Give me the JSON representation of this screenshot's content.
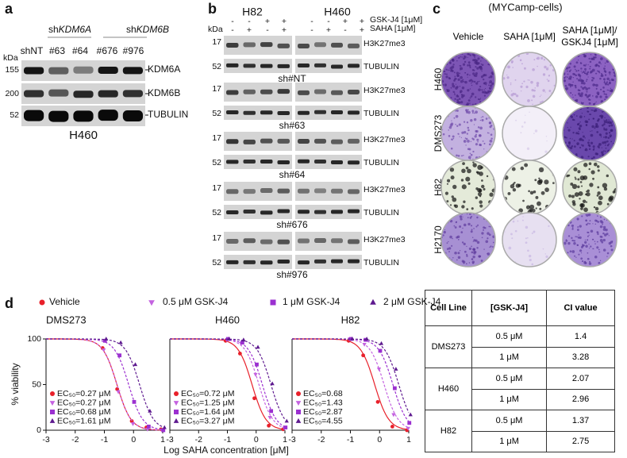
{
  "panel_a": {
    "label": "a",
    "groups": [
      {
        "prefix": "sh",
        "gene": "KDM6A"
      },
      {
        "prefix": "sh",
        "gene": "KDM6B"
      }
    ],
    "lanes": [
      "shNT",
      "#63",
      "#64",
      "#676",
      "#976"
    ],
    "kda": "kDa",
    "markers": [
      "155",
      "200",
      "52"
    ],
    "bands": [
      "KDM6A",
      "KDM6B",
      "TUBULIN"
    ],
    "cell_line": "H460"
  },
  "panel_b": {
    "label": "b",
    "cell_lines": [
      "H82",
      "H460"
    ],
    "treatments": [
      {
        "name": "GSK-J4 [1μM]",
        "signs": [
          "-",
          "-",
          "+",
          "+"
        ]
      },
      {
        "name": "SAHA [1μM]",
        "signs": [
          "-",
          "+",
          "-",
          "+"
        ]
      }
    ],
    "kda": "kDa",
    "blots": [
      {
        "name": "sh#NT",
        "markers": [
          "17",
          "52"
        ],
        "bands": [
          "H3K27me3",
          "TUBULIN"
        ]
      },
      {
        "name": "sh#63",
        "markers": [
          "17",
          "52"
        ],
        "bands": [
          "H3K27me3",
          "TUBULIN"
        ]
      },
      {
        "name": "sh#64",
        "markers": [
          "17",
          "52"
        ],
        "bands": [
          "H3K27me3",
          "TUBULIN"
        ]
      },
      {
        "name": "sh#676",
        "markers": [
          "17",
          "52"
        ],
        "bands": [
          "H3K27me3",
          "TUBULIN"
        ]
      },
      {
        "name": "sh#976",
        "markers": [
          "17",
          "52"
        ],
        "bands": [
          "H3K27me3",
          "TUBULIN"
        ]
      }
    ]
  },
  "panel_c": {
    "label": "c",
    "title": "(MYCamp-cells)",
    "columns": [
      "Vehicle",
      "SAHA [1μM]",
      "SAHA [1μM]/ GSKJ4 [1μM]"
    ],
    "rows": [
      "H460",
      "DMS273",
      "H82",
      "H2170"
    ]
  },
  "panel_d": {
    "label": "d",
    "y_label": "% viability",
    "x_label": "Log SAHA concentration [μM]"
  },
  "chart_data": [
    {
      "type": "line",
      "title": "DMS273",
      "x": [
        -1,
        -0.5,
        0,
        0.5,
        1
      ],
      "xlim": [
        -3,
        1
      ],
      "xticks": [
        -3,
        -2,
        -1,
        0,
        1
      ],
      "ylim": [
        0,
        100
      ],
      "yticks": [
        0,
        50,
        100
      ],
      "series": [
        {
          "name": "Vehicle",
          "color": "#e8202a",
          "marker": "circle",
          "values": [
            90,
            45,
            10,
            3,
            1
          ],
          "ec50": {
            "value": 0.27,
            "label": "EC₅₀=0.27 μM"
          }
        },
        {
          "name": "0.5 μM GSK-J4",
          "color": "#c462e0",
          "marker": "triangle-down",
          "values": [
            88,
            42,
            7,
            1,
            0
          ],
          "ec50": {
            "value": 0.27,
            "label": "EC₅₀=0.27 μM"
          }
        },
        {
          "name": "1 μM GSK-J4",
          "color": "#9b30d0",
          "marker": "square",
          "values": [
            98,
            82,
            31,
            4,
            0
          ],
          "ec50": {
            "value": 0.68,
            "label": "EC₅₀=0.68 μM"
          }
        },
        {
          "name": "2 μM GSK-J4",
          "color": "#5e1a8f",
          "marker": "triangle-up",
          "values": [
            100,
            96,
            72,
            21,
            3
          ],
          "ec50": {
            "value": 1.61,
            "label": "EC₅₀=1.61 μM"
          }
        }
      ]
    },
    {
      "type": "line",
      "title": "H460",
      "x": [
        -1,
        -0.5,
        0,
        0.5,
        1
      ],
      "xlim": [
        -3,
        1
      ],
      "xticks": [
        -3,
        -2,
        -1,
        0,
        1
      ],
      "ylim": [
        0,
        100
      ],
      "series": [
        {
          "name": "Vehicle",
          "color": "#e8202a",
          "marker": "circle",
          "values": [
            98,
            84,
            35,
            5,
            1
          ],
          "ec50": {
            "value": 0.72,
            "label": "EC₅₀=0.72 μM"
          }
        },
        {
          "name": "0.5 μM GSK-J4",
          "color": "#c462e0",
          "marker": "triangle-down",
          "values": [
            99,
            95,
            61,
            14,
            2
          ],
          "ec50": {
            "value": 1.25,
            "label": "EC₅₀=1.25 μM"
          }
        },
        {
          "name": "1 μM GSK-J4",
          "color": "#9b30d0",
          "marker": "square",
          "values": [
            100,
            96,
            72,
            21,
            3
          ],
          "ec50": {
            "value": 1.64,
            "label": "EC₅₀=1.64 μM"
          }
        },
        {
          "name": "2 μM GSK-J4",
          "color": "#5e1a8f",
          "marker": "triangle-up",
          "values": [
            100,
            99,
            91,
            51,
            10
          ],
          "ec50": {
            "value": 3.27,
            "label": "EC₅₀=3.27 μM"
          }
        }
      ]
    },
    {
      "type": "line",
      "title": "H82",
      "x": [
        -1,
        -0.5,
        0,
        0.5,
        1
      ],
      "xlim": [
        -3,
        1
      ],
      "xticks": [
        -3,
        -2,
        -1,
        0,
        1
      ],
      "ylim": [
        0,
        100
      ],
      "series": [
        {
          "name": "Vehicle",
          "color": "#e8202a",
          "marker": "circle",
          "values": [
            98,
            82,
            31,
            4,
            0
          ],
          "ec50": {
            "value": 0.68,
            "label": "EC₅₀=0.68"
          }
        },
        {
          "name": "0.5 μM GSK-J4",
          "color": "#c462e0",
          "marker": "triangle-down",
          "values": [
            100,
            94,
            67,
            17,
            2
          ],
          "ec50": {
            "value": 1.43,
            "label": "EC₅₀=1.43"
          }
        },
        {
          "name": "1 μM GSK-J4",
          "color": "#9b30d0",
          "marker": "square",
          "values": [
            100,
            99,
            87,
            46,
            8
          ],
          "ec50": {
            "value": 2.87,
            "label": "EC₅₀=2.87"
          }
        },
        {
          "name": "2 μM GSK-J4",
          "color": "#5e1a8f",
          "marker": "triangle-up",
          "values": [
            100,
            100,
            95,
            67,
            17
          ],
          "ec50": {
            "value": 4.55,
            "label": "EC₅₀=4.55"
          }
        }
      ]
    }
  ],
  "table": {
    "header": [
      "Cell Line",
      "[GSK-J4]",
      "CI value"
    ],
    "groups": [
      {
        "cell_line": "DMS273",
        "rows": [
          {
            "dose": "0.5 μM",
            "ci": 1.4
          },
          {
            "dose": "1 μM",
            "ci": 3.28
          }
        ]
      },
      {
        "cell_line": "H460",
        "rows": [
          {
            "dose": "0.5 μM",
            "ci": 2.07
          },
          {
            "dose": "1 μM",
            "ci": 2.96
          }
        ]
      },
      {
        "cell_line": "H82",
        "rows": [
          {
            "dose": "0.5 μM",
            "ci": 1.37
          },
          {
            "dose": "1 μM",
            "ci": 2.75
          }
        ]
      }
    ]
  }
}
